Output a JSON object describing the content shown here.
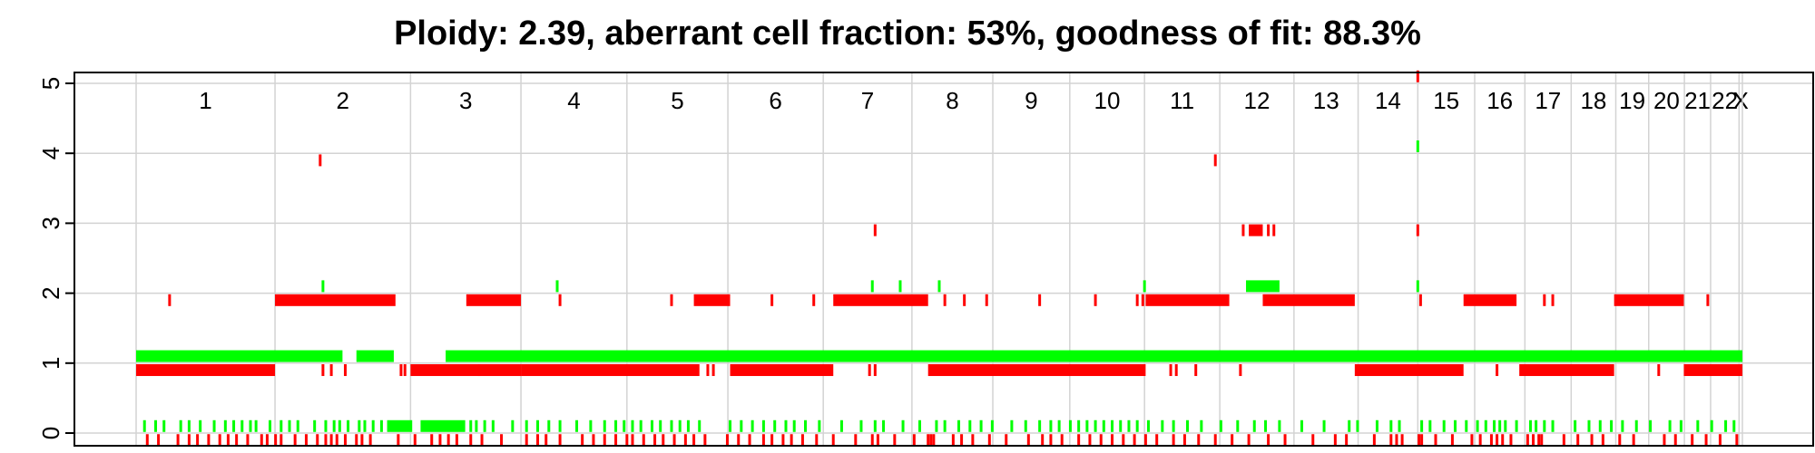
{
  "chart_data": {
    "type": "scatter",
    "title": "Ploidy: 2.39, aberrant cell fraction: 53%, goodness of fit: 88.3%",
    "xlabel": "",
    "ylabel": "",
    "ylim": [
      0,
      5
    ],
    "yticks": [
      0,
      1,
      2,
      3,
      4,
      5
    ],
    "grid": true,
    "colors": {
      "major": "#ff0000",
      "minor": "#00ff00",
      "grid": "#d3d3d3",
      "axis": "#000000"
    },
    "chromosomes": [
      {
        "label": "1",
        "start": 0,
        "end": 249
      },
      {
        "label": "2",
        "start": 249,
        "end": 492
      },
      {
        "label": "3",
        "start": 492,
        "end": 690
      },
      {
        "label": "4",
        "start": 690,
        "end": 880
      },
      {
        "label": "5",
        "start": 880,
        "end": 1061
      },
      {
        "label": "6",
        "start": 1061,
        "end": 1232
      },
      {
        "label": "7",
        "start": 1232,
        "end": 1391
      },
      {
        "label": "8",
        "start": 1391,
        "end": 1536
      },
      {
        "label": "9",
        "start": 1536,
        "end": 1674
      },
      {
        "label": "10",
        "start": 1674,
        "end": 1808
      },
      {
        "label": "11",
        "start": 1808,
        "end": 1943
      },
      {
        "label": "12",
        "start": 1943,
        "end": 2076
      },
      {
        "label": "13",
        "start": 2076,
        "end": 2191
      },
      {
        "label": "14",
        "start": 2191,
        "end": 2298
      },
      {
        "label": "15",
        "start": 2298,
        "end": 2400
      },
      {
        "label": "16",
        "start": 2400,
        "end": 2490
      },
      {
        "label": "17",
        "start": 2490,
        "end": 2573
      },
      {
        "label": "18",
        "start": 2573,
        "end": 2653
      },
      {
        "label": "19",
        "start": 2653,
        "end": 2712
      },
      {
        "label": "20",
        "start": 2712,
        "end": 2776
      },
      {
        "label": "21",
        "start": 2776,
        "end": 2823
      },
      {
        "label": "22",
        "start": 2823,
        "end": 2874
      },
      {
        "label": "X",
        "start": 2874,
        "end": 2880
      }
    ],
    "series": [
      {
        "color": "red",
        "segments": [
          {
            "start": 0,
            "end": 249,
            "value": 0.9
          },
          {
            "start": 249,
            "end": 465,
            "value": 1.9
          },
          {
            "start": 492,
            "end": 690,
            "value": 0.9
          },
          {
            "start": 592,
            "end": 690,
            "value": 1.9
          },
          {
            "start": 690,
            "end": 1010,
            "value": 0.9
          },
          {
            "start": 1000,
            "end": 1065,
            "value": 1.9
          },
          {
            "start": 1065,
            "end": 1250,
            "value": 0.9
          },
          {
            "start": 1250,
            "end": 1420,
            "value": 1.9
          },
          {
            "start": 1420,
            "end": 1810,
            "value": 0.9
          },
          {
            "start": 1810,
            "end": 1960,
            "value": 1.9
          },
          {
            "start": 1995,
            "end": 2020,
            "value": 2.9
          },
          {
            "start": 2020,
            "end": 2185,
            "value": 1.9
          },
          {
            "start": 2185,
            "end": 2380,
            "value": 0.9
          },
          {
            "start": 2380,
            "end": 2475,
            "value": 1.9
          },
          {
            "start": 2480,
            "end": 2650,
            "value": 0.9
          },
          {
            "start": 2650,
            "end": 2775,
            "value": 1.9
          },
          {
            "start": 2775,
            "end": 2880,
            "value": 0.9
          }
        ],
        "points": [
          {
            "x": 60,
            "y": 1.9
          },
          {
            "x": 330,
            "y": 3.9
          },
          {
            "x": 335,
            "y": 0.9
          },
          {
            "x": 350,
            "y": 0.9
          },
          {
            "x": 375,
            "y": 0.9
          },
          {
            "x": 475,
            "y": 0.9
          },
          {
            "x": 482,
            "y": 0.9
          },
          {
            "x": 615,
            "y": 0.9
          },
          {
            "x": 760,
            "y": 1.9
          },
          {
            "x": 960,
            "y": 1.9
          },
          {
            "x": 1025,
            "y": 0.9
          },
          {
            "x": 1035,
            "y": 0.9
          },
          {
            "x": 1140,
            "y": 1.9
          },
          {
            "x": 1215,
            "y": 1.9
          },
          {
            "x": 1315,
            "y": 0.9
          },
          {
            "x": 1325,
            "y": 0.9
          },
          {
            "x": 1325,
            "y": 2.9
          },
          {
            "x": 1450,
            "y": 1.9
          },
          {
            "x": 1485,
            "y": 1.9
          },
          {
            "x": 1525,
            "y": 1.9
          },
          {
            "x": 1620,
            "y": 1.9
          },
          {
            "x": 1720,
            "y": 1.9
          },
          {
            "x": 1795,
            "y": 1.9
          },
          {
            "x": 1805,
            "y": 1.9
          },
          {
            "x": 1855,
            "y": 0.9
          },
          {
            "x": 1865,
            "y": 0.9
          },
          {
            "x": 1900,
            "y": 0.9
          },
          {
            "x": 1935,
            "y": 3.9
          },
          {
            "x": 1980,
            "y": 0.9
          },
          {
            "x": 1985,
            "y": 2.9
          },
          {
            "x": 2030,
            "y": 2.9
          },
          {
            "x": 2040,
            "y": 2.9
          },
          {
            "x": 2298,
            "y": 2.9
          },
          {
            "x": 2303,
            "y": 1.9
          },
          {
            "x": 2298,
            "y": 5.1
          },
          {
            "x": 2440,
            "y": 0.9
          },
          {
            "x": 2525,
            "y": 1.9
          },
          {
            "x": 2540,
            "y": 1.9
          },
          {
            "x": 2730,
            "y": 0.9
          },
          {
            "x": 2818,
            "y": 1.9
          }
        ],
        "bottom_ticks": [
          20,
          40,
          75,
          95,
          110,
          130,
          150,
          165,
          180,
          200,
          225,
          235,
          250,
          260,
          285,
          305,
          325,
          340,
          350,
          360,
          375,
          395,
          405,
          420,
          470,
          500,
          530,
          545,
          560,
          575,
          600,
          620,
          655,
          700,
          720,
          735,
          760,
          800,
          820,
          840,
          860,
          880,
          890,
          910,
          930,
          945,
          965,
          985,
          1000,
          1020,
          1060,
          1080,
          1100,
          1125,
          1140,
          1160,
          1175,
          1195,
          1220,
          1250,
          1290,
          1320,
          1330,
          1360,
          1395,
          1420,
          1425,
          1430,
          1465,
          1480,
          1500,
          1530,
          1560,
          1600,
          1625,
          1640,
          1660,
          1690,
          1710,
          1730,
          1750,
          1770,
          1790,
          1810,
          1830,
          1860,
          1880,
          1905,
          1935,
          1965,
          1995,
          2030,
          2060,
          2110,
          2150,
          2170,
          2220,
          2250,
          2260,
          2270,
          2300,
          2305,
          2330,
          2360,
          2395,
          2410,
          2430,
          2440,
          2450,
          2465,
          2495,
          2505,
          2515,
          2520,
          2560,
          2585,
          2610,
          2630,
          2660,
          2685,
          2740,
          2760,
          2790,
          2815,
          2840,
          2870
        ]
      },
      {
        "color": "green",
        "segments": [
          {
            "start": 0,
            "end": 370,
            "value": 1.1
          },
          {
            "start": 395,
            "end": 462,
            "value": 1.1
          },
          {
            "start": 555,
            "end": 2880,
            "value": 1.1
          },
          {
            "start": 1990,
            "end": 2050,
            "value": 2.1
          },
          {
            "start": 450,
            "end": 495,
            "value": 0.1
          },
          {
            "start": 510,
            "end": 590,
            "value": 0.1
          }
        ],
        "points": [
          {
            "x": 335,
            "y": 2.1
          },
          {
            "x": 755,
            "y": 2.1
          },
          {
            "x": 1320,
            "y": 2.1
          },
          {
            "x": 1370,
            "y": 2.1
          },
          {
            "x": 1440,
            "y": 2.1
          },
          {
            "x": 1808,
            "y": 2.1
          },
          {
            "x": 2298,
            "y": 4.1
          },
          {
            "x": 2298,
            "y": 2.1
          }
        ],
        "bottom_ticks": [
          15,
          35,
          50,
          80,
          95,
          115,
          140,
          160,
          175,
          190,
          205,
          215,
          240,
          260,
          275,
          290,
          320,
          340,
          355,
          365,
          380,
          400,
          410,
          425,
          440,
          600,
          610,
          625,
          640,
          675,
          700,
          720,
          740,
          760,
          790,
          815,
          840,
          860,
          875,
          890,
          905,
          925,
          940,
          960,
          975,
          990,
          1010,
          1065,
          1085,
          1105,
          1125,
          1145,
          1165,
          1180,
          1200,
          1225,
          1265,
          1300,
          1325,
          1340,
          1375,
          1405,
          1435,
          1450,
          1475,
          1495,
          1515,
          1535,
          1570,
          1595,
          1620,
          1640,
          1655,
          1675,
          1690,
          1705,
          1720,
          1735,
          1750,
          1765,
          1780,
          1795,
          1815,
          1840,
          1860,
          1885,
          1910,
          1945,
          1975,
          2005,
          2025,
          2050,
          2090,
          2130,
          2175,
          2190,
          2225,
          2250,
          2265,
          2305,
          2320,
          2345,
          2365,
          2385,
          2405,
          2420,
          2435,
          2445,
          2455,
          2475,
          2500,
          2510,
          2525,
          2540,
          2580,
          2605,
          2625,
          2645,
          2665,
          2690,
          2715,
          2750,
          2770,
          2800,
          2825,
          2850,
          2865
        ]
      }
    ]
  }
}
